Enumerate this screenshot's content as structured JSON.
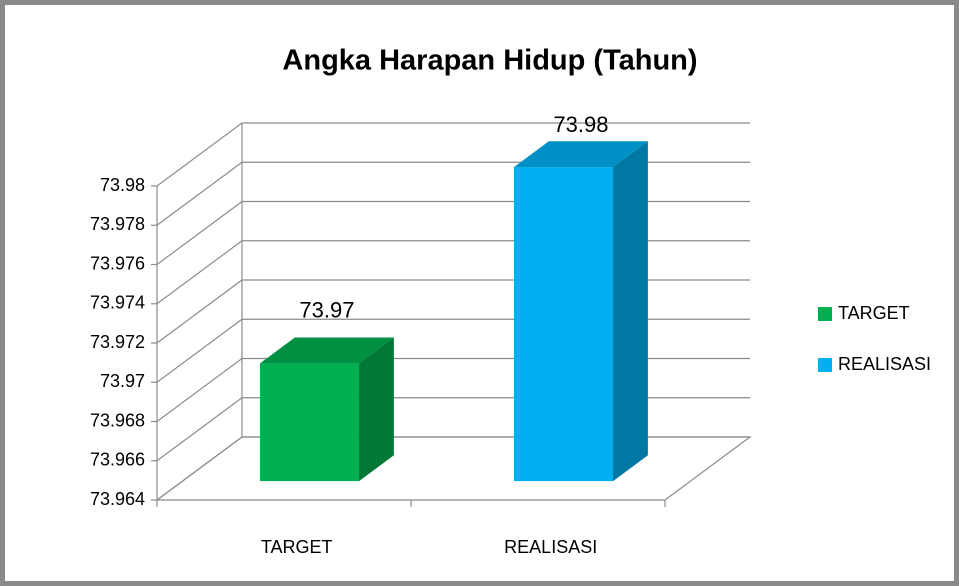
{
  "chart_data": {
    "type": "bar3d",
    "title": "Angka Harapan Hidup (Tahun)",
    "categories": [
      "TARGET",
      "REALISASI"
    ],
    "series": [
      {
        "name": "TARGET",
        "color": "#00b050",
        "values": [
          73.97,
          null
        ]
      },
      {
        "name": "REALISASI",
        "color": "#00b0f0",
        "values": [
          null,
          73.98
        ]
      }
    ],
    "ylim": [
      73.964,
      73.98
    ],
    "yticks": [
      73.964,
      73.966,
      73.968,
      73.97,
      73.972,
      73.974,
      73.976,
      73.978,
      73.98
    ],
    "grid": true,
    "legend": "right"
  }
}
